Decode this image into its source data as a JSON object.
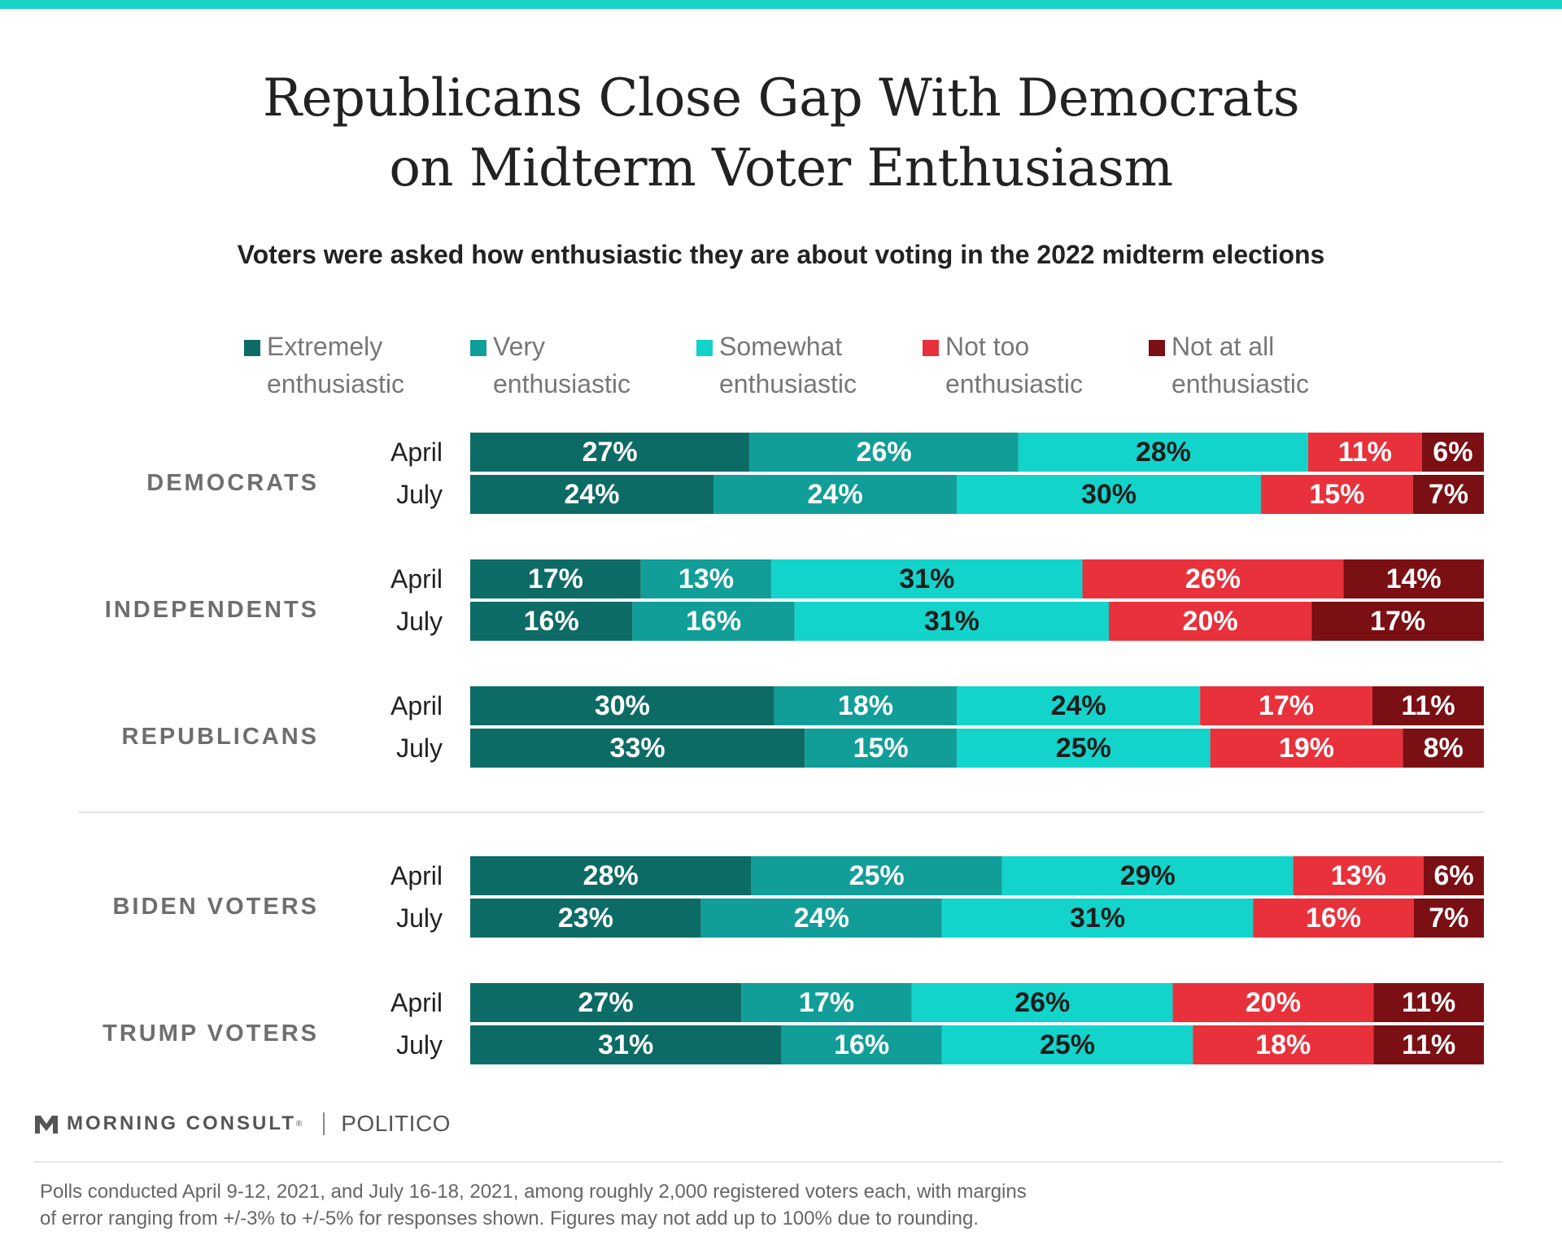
{
  "title_lines": [
    "Republicans Close Gap With Democrats",
    "on Midterm Voter Enthusiasm"
  ],
  "subtitle": "Voters were asked how enthusiastic they are about voting in the 2022 midterm elections",
  "colors": {
    "accent_bar": "#19d3c5",
    "extremely": "#0d6b65",
    "very": "#119e98",
    "somewhat": "#13d4cb",
    "not_too": "#e8313b",
    "not_at_all": "#7a0f14"
  },
  "chart_data": {
    "type": "bar",
    "orientation": "horizontal",
    "stacked": true,
    "unit": "%",
    "legend_placement": "top",
    "series": [
      {
        "name": "Extremely enthusiastic",
        "legend_lines": [
          "Extremely",
          "enthusiastic"
        ],
        "color": "#0d6b65",
        "label_color": "#ffffff"
      },
      {
        "name": "Very enthusiastic",
        "legend_lines": [
          "Very",
          "enthusiastic"
        ],
        "color": "#119e98",
        "label_color": "#ffffff"
      },
      {
        "name": "Somewhat enthusiastic",
        "legend_lines": [
          "Somewhat",
          "enthusiastic"
        ],
        "color": "#13d4cb",
        "label_color": "#1d1d1d"
      },
      {
        "name": "Not too enthusiastic",
        "legend_lines": [
          "Not too",
          "enthusiastic"
        ],
        "color": "#e8313b",
        "label_color": "#ffffff"
      },
      {
        "name": "Not at all enthusiastic",
        "legend_lines": [
          "Not at all",
          "enthusiastic"
        ],
        "color": "#7a0f14",
        "label_color": "#ffffff"
      }
    ],
    "groups": [
      {
        "name": "DEMOCRATS",
        "rows": [
          {
            "label": "April",
            "values": [
              27,
              26,
              28,
              11,
              6
            ]
          },
          {
            "label": "July",
            "values": [
              24,
              24,
              30,
              15,
              7
            ]
          }
        ]
      },
      {
        "name": "INDEPENDENTS",
        "rows": [
          {
            "label": "April",
            "values": [
              17,
              13,
              31,
              26,
              14
            ]
          },
          {
            "label": "July",
            "values": [
              16,
              16,
              31,
              20,
              17
            ]
          }
        ]
      },
      {
        "name": "REPUBLICANS",
        "rows": [
          {
            "label": "April",
            "values": [
              30,
              18,
              24,
              17,
              11
            ]
          },
          {
            "label": "July",
            "values": [
              33,
              15,
              25,
              19,
              8
            ]
          }
        ]
      },
      {
        "name": "BIDEN VOTERS",
        "rows": [
          {
            "label": "April",
            "values": [
              28,
              25,
              29,
              13,
              6
            ]
          },
          {
            "label": "July",
            "values": [
              23,
              24,
              31,
              16,
              7
            ]
          }
        ]
      },
      {
        "name": "TRUMP VOTERS",
        "rows": [
          {
            "label": "April",
            "values": [
              27,
              17,
              26,
              20,
              11
            ]
          },
          {
            "label": "July",
            "values": [
              31,
              16,
              25,
              18,
              11
            ]
          }
        ]
      }
    ]
  },
  "logo": {
    "brand": "MORNING CONSULT",
    "mark": "®",
    "partner": "POLITICO"
  },
  "footer_lines": [
    "Polls conducted April 9-12, 2021, and July 16-18, 2021, among roughly 2,000 registered voters each, with margins",
    "of error ranging from +/-3% to +/-5% for responses shown. Figures may not add up to 100% due to rounding."
  ]
}
